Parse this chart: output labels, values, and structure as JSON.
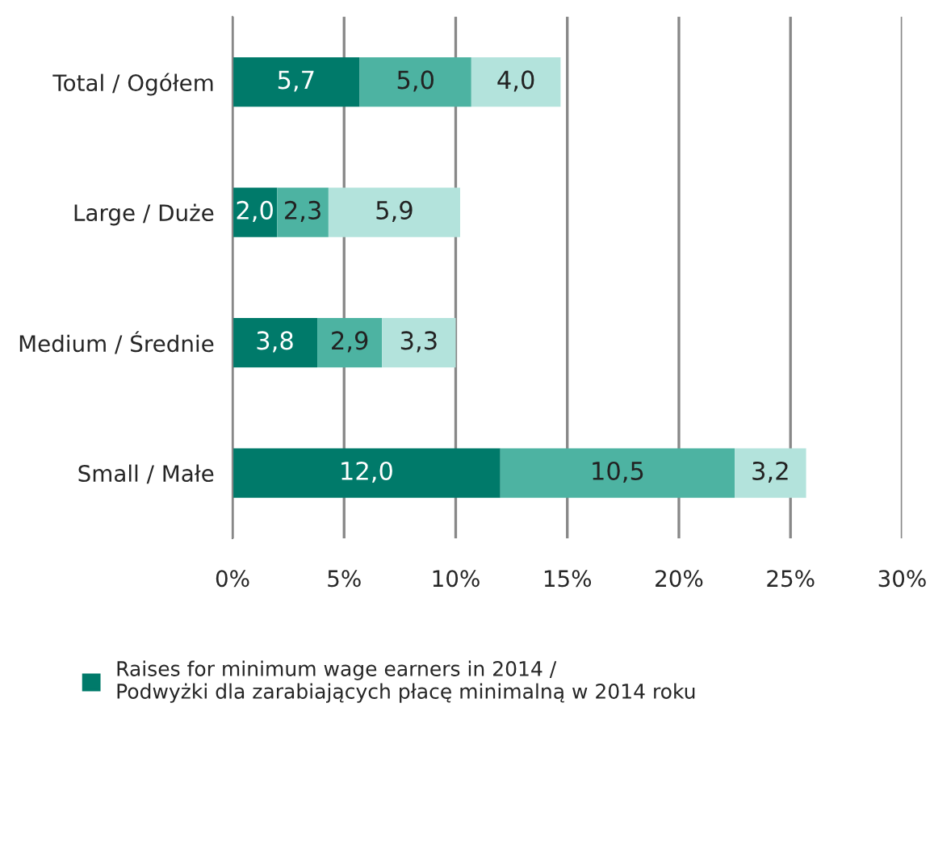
{
  "chart_data": {
    "type": "bar",
    "orientation": "horizontal",
    "stacked": true,
    "categories": [
      "Total / Ogółem",
      "Large / Duże",
      "Medium / Średnie",
      "Small / Małe"
    ],
    "series": [
      {
        "name": "Raises for minimum wage earners in 2014 /\nPodwyżki dla zarabiających płacę minimalną w 2014 roku",
        "color": "#007a6a",
        "values": [
          5.7,
          2.0,
          3.8,
          12.0
        ],
        "value_labels": [
          "5,7",
          "2,0",
          "3,8",
          "12,0"
        ]
      },
      {
        "color": "#4db3a2",
        "values": [
          5.0,
          2.3,
          2.9,
          10.5
        ],
        "value_labels": [
          "5,0",
          "2,3",
          "2,9",
          "10,5"
        ]
      },
      {
        "color": "#b3e3dc",
        "values": [
          4.0,
          5.9,
          3.3,
          3.2
        ],
        "value_labels": [
          "4,0",
          "5,9",
          "3,3",
          "3,2"
        ]
      }
    ],
    "xlim": [
      0,
      30
    ],
    "xticks": [
      {
        "value": 0,
        "label": "0%"
      },
      {
        "value": 5,
        "label": "5%"
      },
      {
        "value": 10,
        "label": "10%"
      },
      {
        "value": 15,
        "label": "15%"
      },
      {
        "value": 20,
        "label": "20%"
      },
      {
        "value": 25,
        "label": "25%"
      },
      {
        "value": 30,
        "label": "30%"
      }
    ],
    "grid": "x",
    "legend": "bottom"
  }
}
